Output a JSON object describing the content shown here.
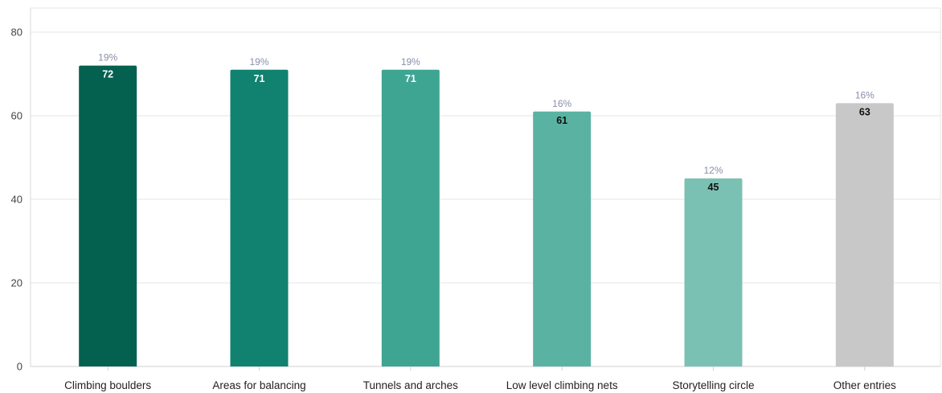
{
  "chart_data": {
    "type": "bar",
    "categories": [
      "Climbing boulders",
      "Areas for balancing",
      "Tunnels and arches",
      "Low level climbing nets",
      "Storytelling circle",
      "Other entries"
    ],
    "values": [
      72,
      71,
      71,
      61,
      45,
      63
    ],
    "percent_labels": [
      "19%",
      "19%",
      "19%",
      "16%",
      "12%",
      "16%"
    ],
    "bar_colors": [
      "#04614f",
      "#10826f",
      "#3ea593",
      "#5ab3a2",
      "#7bc1b3",
      "#c8c8c8"
    ],
    "value_label_colors": [
      "#ffffff",
      "#ffffff",
      "#ffffff",
      "#111111",
      "#111111",
      "#111111"
    ],
    "ylim": [
      0,
      80
    ],
    "yticks": [
      0,
      20,
      40,
      60,
      80
    ],
    "grid": true,
    "xlabel": "",
    "ylabel": "",
    "title": ""
  }
}
